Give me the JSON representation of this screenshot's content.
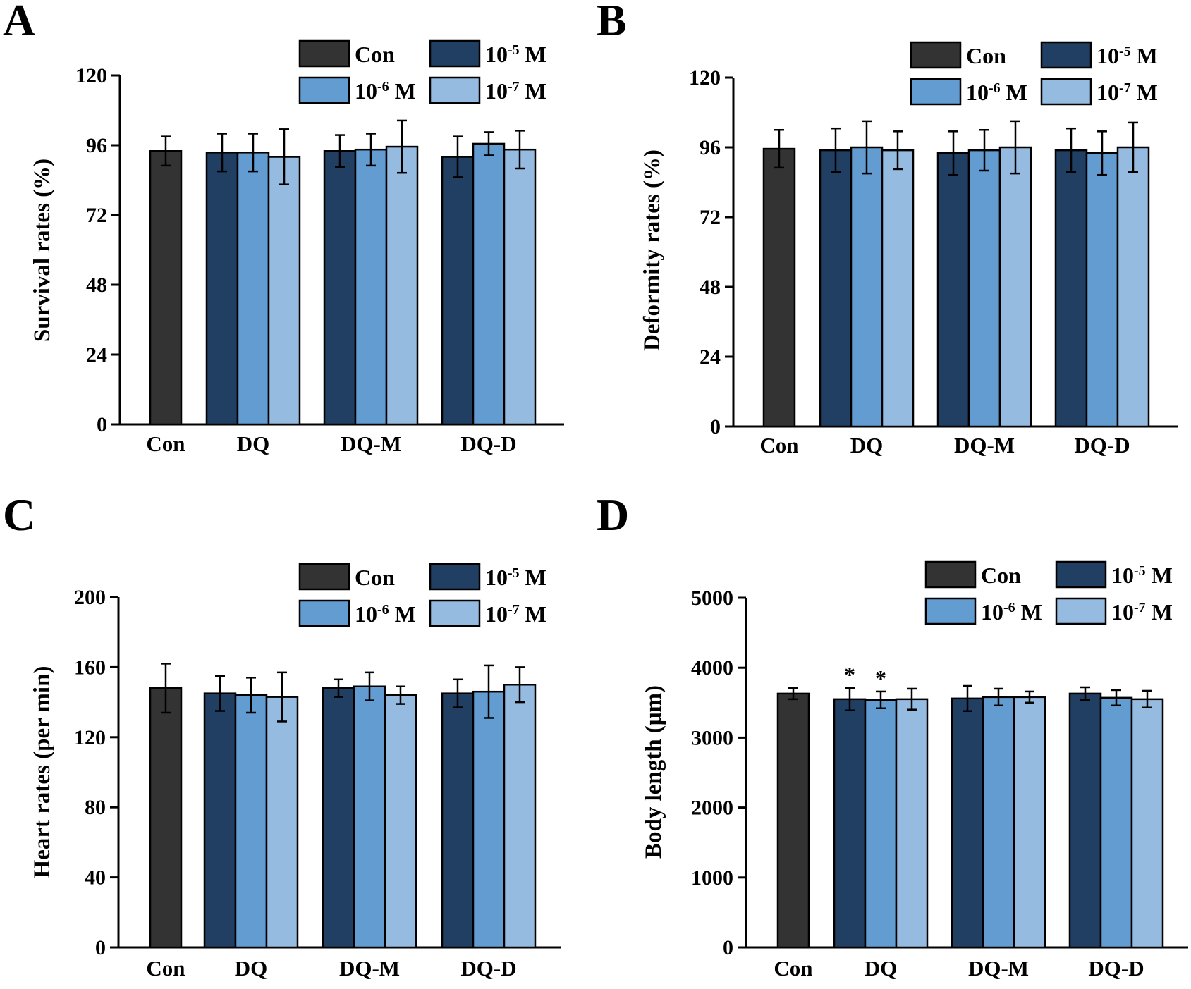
{
  "colors": {
    "con": "#333333",
    "1e-5": "#213f63",
    "1e-6": "#629cd1",
    "1e-7": "#95bbe0",
    "axis": "#000000"
  },
  "legend_labels": {
    "con": "Con",
    "e5": {
      "base": "10",
      "exp": "-5",
      "unit": " M"
    },
    "e6": {
      "base": "10",
      "exp": "-6",
      "unit": " M"
    },
    "e7": {
      "base": "10",
      "exp": "-7",
      "unit": " M"
    }
  },
  "chart_data": [
    {
      "panel": "A",
      "type": "bar",
      "ylabel": "Survival rates (%)",
      "ylim": [
        0,
        120
      ],
      "yticks": [
        0,
        24,
        48,
        72,
        96,
        120
      ],
      "legend_position": "top-right",
      "categories": [
        "Con",
        "DQ",
        "DQ-M",
        "DQ-D"
      ],
      "series": [
        {
          "name": "Con",
          "values": [
            94.0,
            null,
            null,
            null
          ],
          "errors": [
            5,
            null,
            null,
            null
          ]
        },
        {
          "name": "10-5 M",
          "values": [
            null,
            93.5,
            94.0,
            92.0
          ],
          "errors": [
            null,
            6.5,
            5.5,
            7
          ]
        },
        {
          "name": "10-6 M",
          "values": [
            null,
            93.5,
            94.5,
            96.5
          ],
          "errors": [
            null,
            6.5,
            5.5,
            4
          ]
        },
        {
          "name": "10-7 M",
          "values": [
            null,
            92.0,
            95.5,
            94.5
          ],
          "errors": [
            null,
            9.5,
            9,
            6.5
          ]
        }
      ],
      "annotations": []
    },
    {
      "panel": "B",
      "type": "bar",
      "ylabel": "Deformity rates (%)",
      "ylim": [
        0,
        120
      ],
      "yticks": [
        0,
        24,
        48,
        72,
        96,
        120
      ],
      "legend_position": "top-right",
      "categories": [
        "Con",
        "DQ",
        "DQ-M",
        "DQ-D"
      ],
      "series": [
        {
          "name": "Con",
          "values": [
            95.5,
            null,
            null,
            null
          ],
          "errors": [
            6.5,
            null,
            null,
            null
          ]
        },
        {
          "name": "10-5 M",
          "values": [
            null,
            95.0,
            94.0,
            95.0
          ],
          "errors": [
            null,
            7.5,
            7.5,
            7.5
          ]
        },
        {
          "name": "10-6 M",
          "values": [
            null,
            96.0,
            95.0,
            94.0
          ],
          "errors": [
            null,
            9,
            7,
            7.5
          ]
        },
        {
          "name": "10-7 M",
          "values": [
            null,
            95.0,
            96.0,
            96.0
          ],
          "errors": [
            null,
            6.5,
            9,
            8.5
          ]
        }
      ],
      "annotations": []
    },
    {
      "panel": "C",
      "type": "bar",
      "ylabel": "Heart rates (per min)",
      "ylim": [
        0,
        200
      ],
      "yticks": [
        0,
        40,
        80,
        120,
        160,
        200
      ],
      "legend_position": "top-right",
      "categories": [
        "Con",
        "DQ",
        "DQ-M",
        "DQ-D"
      ],
      "series": [
        {
          "name": "Con",
          "values": [
            148,
            null,
            null,
            null
          ],
          "errors": [
            14,
            null,
            null,
            null
          ]
        },
        {
          "name": "10-5 M",
          "values": [
            null,
            145,
            148,
            145
          ],
          "errors": [
            null,
            10,
            5,
            8
          ]
        },
        {
          "name": "10-6 M",
          "values": [
            null,
            144,
            149,
            146
          ],
          "errors": [
            null,
            10,
            8,
            15
          ]
        },
        {
          "name": "10-7 M",
          "values": [
            null,
            143,
            144,
            150
          ],
          "errors": [
            null,
            14,
            5,
            10
          ]
        }
      ],
      "annotations": []
    },
    {
      "panel": "D",
      "type": "bar",
      "ylabel": "Body length (μm)",
      "ylim": [
        0,
        5000
      ],
      "yticks": [
        0,
        1000,
        2000,
        3000,
        4000,
        5000
      ],
      "legend_position": "top-right",
      "categories": [
        "Con",
        "DQ",
        "DQ-M",
        "DQ-D"
      ],
      "series": [
        {
          "name": "Con",
          "values": [
            3630,
            null,
            null,
            null
          ],
          "errors": [
            80,
            null,
            null,
            null
          ]
        },
        {
          "name": "10-5 M",
          "values": [
            null,
            3550,
            3560,
            3630
          ],
          "errors": [
            null,
            160,
            180,
            90
          ]
        },
        {
          "name": "10-6 M",
          "values": [
            null,
            3540,
            3580,
            3570
          ],
          "errors": [
            null,
            120,
            120,
            110
          ]
        },
        {
          "name": "10-7 M",
          "values": [
            null,
            3550,
            3580,
            3550
          ],
          "errors": [
            null,
            150,
            80,
            120
          ]
        }
      ],
      "annotations": [
        {
          "category": "DQ",
          "series": "10-5 M",
          "text": "*"
        },
        {
          "category": "DQ",
          "series": "10-6 M",
          "text": "*"
        }
      ]
    }
  ]
}
